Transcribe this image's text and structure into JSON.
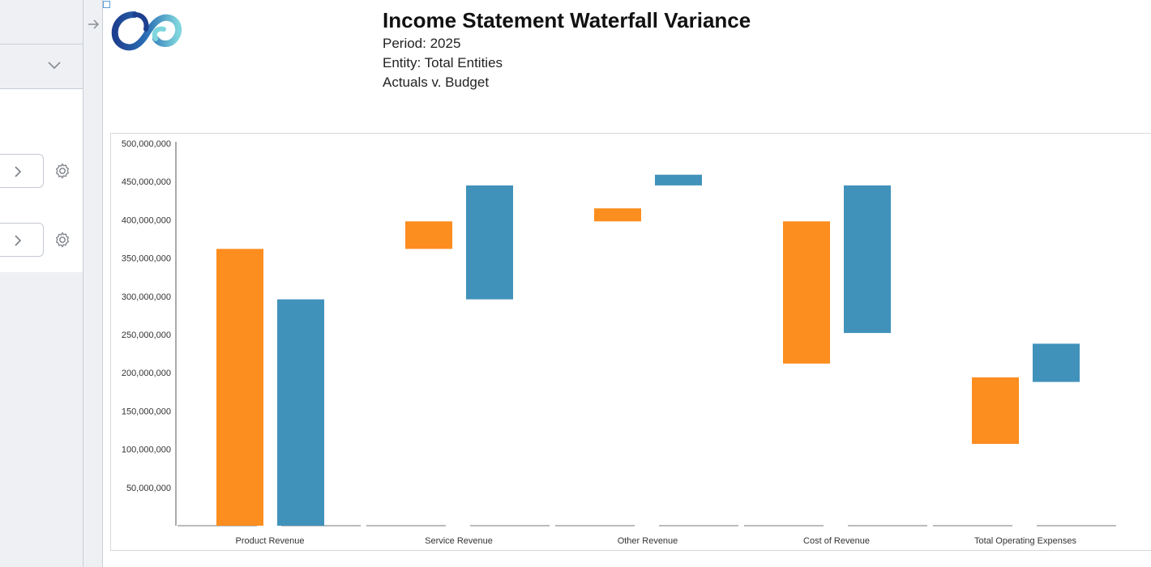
{
  "header": {
    "title": "Income Statement Waterfall Variance",
    "period": "Period: 2025",
    "entity": "Entity: Total Entities",
    "comparison": "Actuals v. Budget"
  },
  "colors": {
    "actuals": "#fc8d1f",
    "budget": "#4192bb",
    "axis": "#555555",
    "baseline": "#bbbbbb"
  },
  "icons": {
    "collapse": "arrow-right-icon",
    "dropdown": "chevron-down-icon",
    "row_expand": "chevron-right-icon",
    "settings": "gear-icon",
    "logo": "logo-icon"
  },
  "chart_data": {
    "type": "bar",
    "categories": [
      "Product Revenue",
      "Service Revenue",
      "Other Revenue",
      "Cost of Revenue",
      "Total Operating Expenses"
    ],
    "series": [
      {
        "color": "actuals",
        "ranges": [
          [
            0,
            362000000
          ],
          [
            362000000,
            398000000
          ],
          [
            398000000,
            415000000
          ],
          [
            212000000,
            398000000
          ],
          [
            107000000,
            194000000
          ]
        ]
      },
      {
        "color": "budget",
        "ranges": [
          [
            0,
            296000000
          ],
          [
            296000000,
            445000000
          ],
          [
            445000000,
            459000000
          ],
          [
            252000000,
            445000000
          ],
          [
            188000000,
            238000000
          ]
        ]
      }
    ],
    "y_ticks": [
      "500,000,000",
      "450,000,000",
      "400,000,000",
      "350,000,000",
      "300,000,000",
      "250,000,000",
      "200,000,000",
      "150,000,000",
      "100,000,000",
      "50,000,000"
    ],
    "ylim": [
      0,
      500000000
    ],
    "grid": false,
    "legend": "none"
  }
}
